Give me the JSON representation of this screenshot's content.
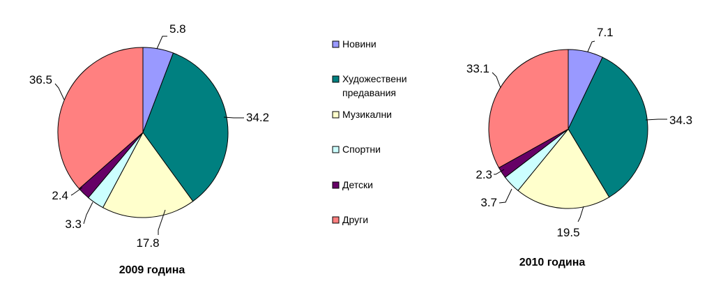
{
  "legend": [
    "Новини",
    "Художествени предавания",
    "Музикални",
    "Спортни",
    "Детски",
    "Други"
  ],
  "colors": [
    "#9999ff",
    "#008080",
    "#ffffcc",
    "#ccffff",
    "#660066",
    "#ff8080"
  ],
  "chart_data": [
    {
      "type": "pie",
      "title": "2009 година",
      "categories": [
        "Новини",
        "Художествени предавания",
        "Музикални",
        "Спортни",
        "Детски",
        "Други"
      ],
      "values": [
        5.8,
        34.2,
        17.8,
        3.3,
        2.4,
        36.5
      ],
      "labels": [
        "5.8",
        "34.2",
        "17.8",
        "3.3",
        "2.4",
        "36.5"
      ],
      "legend_position": "center"
    },
    {
      "type": "pie",
      "title": "2010 година",
      "categories": [
        "Новини",
        "Художествени предавания",
        "Музикални",
        "Спортни",
        "Детски",
        "Други"
      ],
      "values": [
        7.1,
        34.3,
        19.5,
        3.7,
        2.3,
        33.1
      ],
      "labels": [
        "7.1",
        "34.3",
        "19.5",
        "3.7",
        "2.3",
        "33.1"
      ],
      "legend_position": "center"
    }
  ]
}
